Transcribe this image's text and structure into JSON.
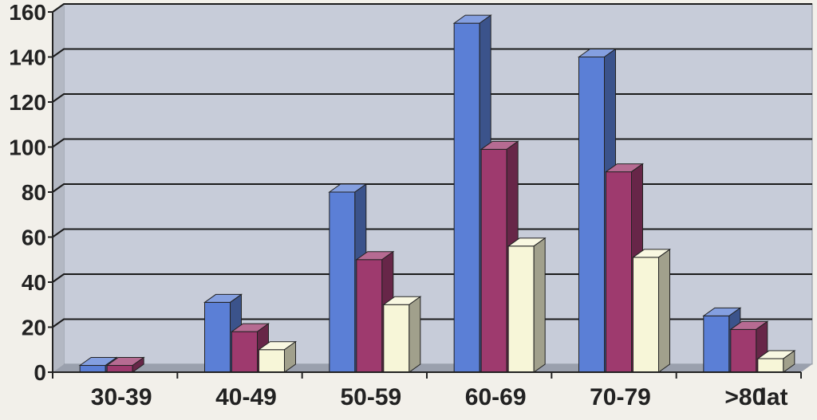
{
  "chart_data": {
    "type": "bar",
    "categories": [
      "30-39",
      "40-49",
      "50-59",
      "60-69",
      "70-79",
      ">80"
    ],
    "xlabel": "lat",
    "ylabel": "",
    "ylim": [
      0,
      160
    ],
    "yticks": [
      0,
      20,
      40,
      60,
      80,
      100,
      120,
      140,
      160
    ],
    "grid": true,
    "legend": "none",
    "series": [
      {
        "color": "#5b7fd6",
        "values": [
          3,
          31,
          80,
          155,
          140,
          25
        ]
      },
      {
        "color": "#9e3a6e",
        "values": [
          3,
          18,
          50,
          99,
          89,
          19
        ]
      },
      {
        "color": "#f7f6d8",
        "values": [
          0,
          10,
          30,
          56,
          51,
          6
        ]
      }
    ],
    "colors": {
      "plot_background": "#c7ccd9",
      "gridline": "#1a1a1a",
      "floor": "#9aa0ad"
    }
  }
}
